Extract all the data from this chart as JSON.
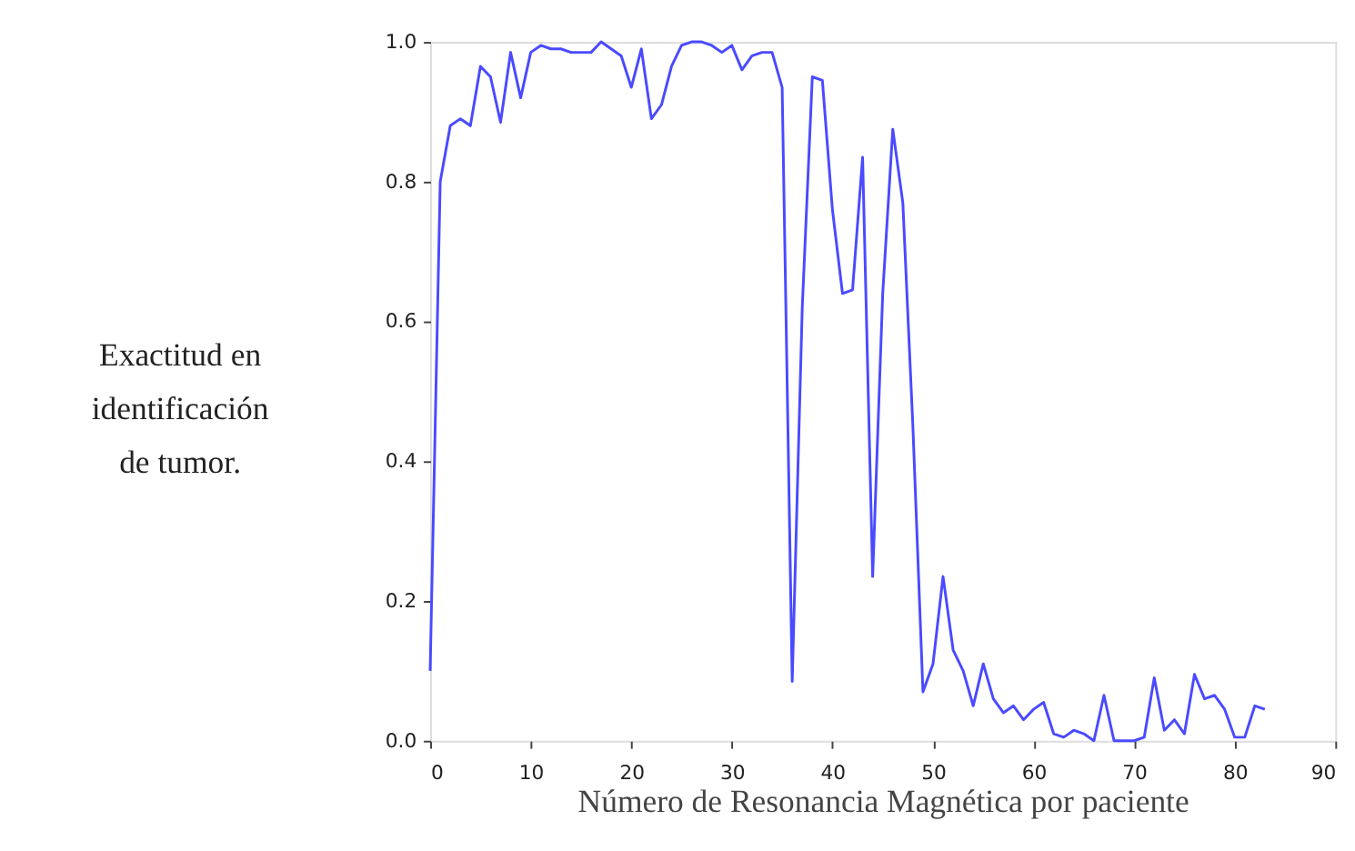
{
  "chart_data": {
    "type": "line",
    "xlabel": "Número de Resonancia Magnética por paciente",
    "ylabel": "Exactitud en\nidentificación\nde tumor.",
    "x": [
      0,
      1,
      2,
      3,
      4,
      5,
      6,
      7,
      8,
      9,
      10,
      11,
      12,
      13,
      14,
      15,
      16,
      17,
      18,
      19,
      20,
      21,
      22,
      23,
      24,
      25,
      26,
      27,
      28,
      29,
      30,
      31,
      32,
      33,
      34,
      35,
      36,
      37,
      38,
      39,
      40,
      41,
      42,
      43,
      44,
      45,
      46,
      47,
      48,
      49,
      50,
      51,
      52,
      53,
      54,
      55,
      56,
      57,
      58,
      59,
      60,
      61,
      62,
      63,
      64,
      65,
      66,
      67,
      68,
      69,
      70,
      71,
      72,
      73,
      74,
      75,
      76,
      77,
      78,
      79,
      80,
      81,
      82,
      83
    ],
    "series": [
      {
        "color": "#4a4aff",
        "values": [
          0.1,
          0.8,
          0.88,
          0.89,
          0.88,
          0.965,
          0.95,
          0.885,
          0.985,
          0.92,
          0.985,
          0.995,
          0.99,
          0.99,
          0.985,
          0.985,
          0.985,
          1.0,
          0.99,
          0.98,
          0.935,
          0.99,
          0.89,
          0.91,
          0.965,
          0.995,
          1.0,
          1.0,
          0.995,
          0.985,
          0.995,
          0.96,
          0.98,
          0.985,
          0.985,
          0.935,
          0.085,
          0.62,
          0.95,
          0.945,
          0.76,
          0.64,
          0.645,
          0.835,
          0.235,
          0.64,
          0.875,
          0.77,
          0.45,
          0.07,
          0.11,
          0.235,
          0.13,
          0.1,
          0.05,
          0.11,
          0.06,
          0.04,
          0.05,
          0.03,
          0.045,
          0.055,
          0.01,
          0.005,
          0.015,
          0.01,
          0.0,
          0.065,
          0.0,
          0.0,
          0.0,
          0.005,
          0.09,
          0.015,
          0.03,
          0.01,
          0.095,
          0.06,
          0.065,
          0.045,
          0.005,
          0.005,
          0.05,
          0.045
        ]
      }
    ],
    "xlim": [
      0,
      90
    ],
    "xticks": [
      0,
      10,
      20,
      30,
      40,
      50,
      60,
      70,
      80,
      90
    ],
    "ylim": [
      0,
      1
    ],
    "yticks": [
      {
        "value": 0,
        "label": "0.0"
      },
      {
        "value": 0.2,
        "label": "0.2"
      },
      {
        "value": 0.4,
        "label": "0.4"
      },
      {
        "value": 0.6,
        "label": "0.6"
      },
      {
        "value": 0.8,
        "label": "0.8"
      },
      {
        "value": 1,
        "label": "1.0"
      }
    ],
    "grid": false,
    "marker": "none",
    "line_style": "solid"
  }
}
